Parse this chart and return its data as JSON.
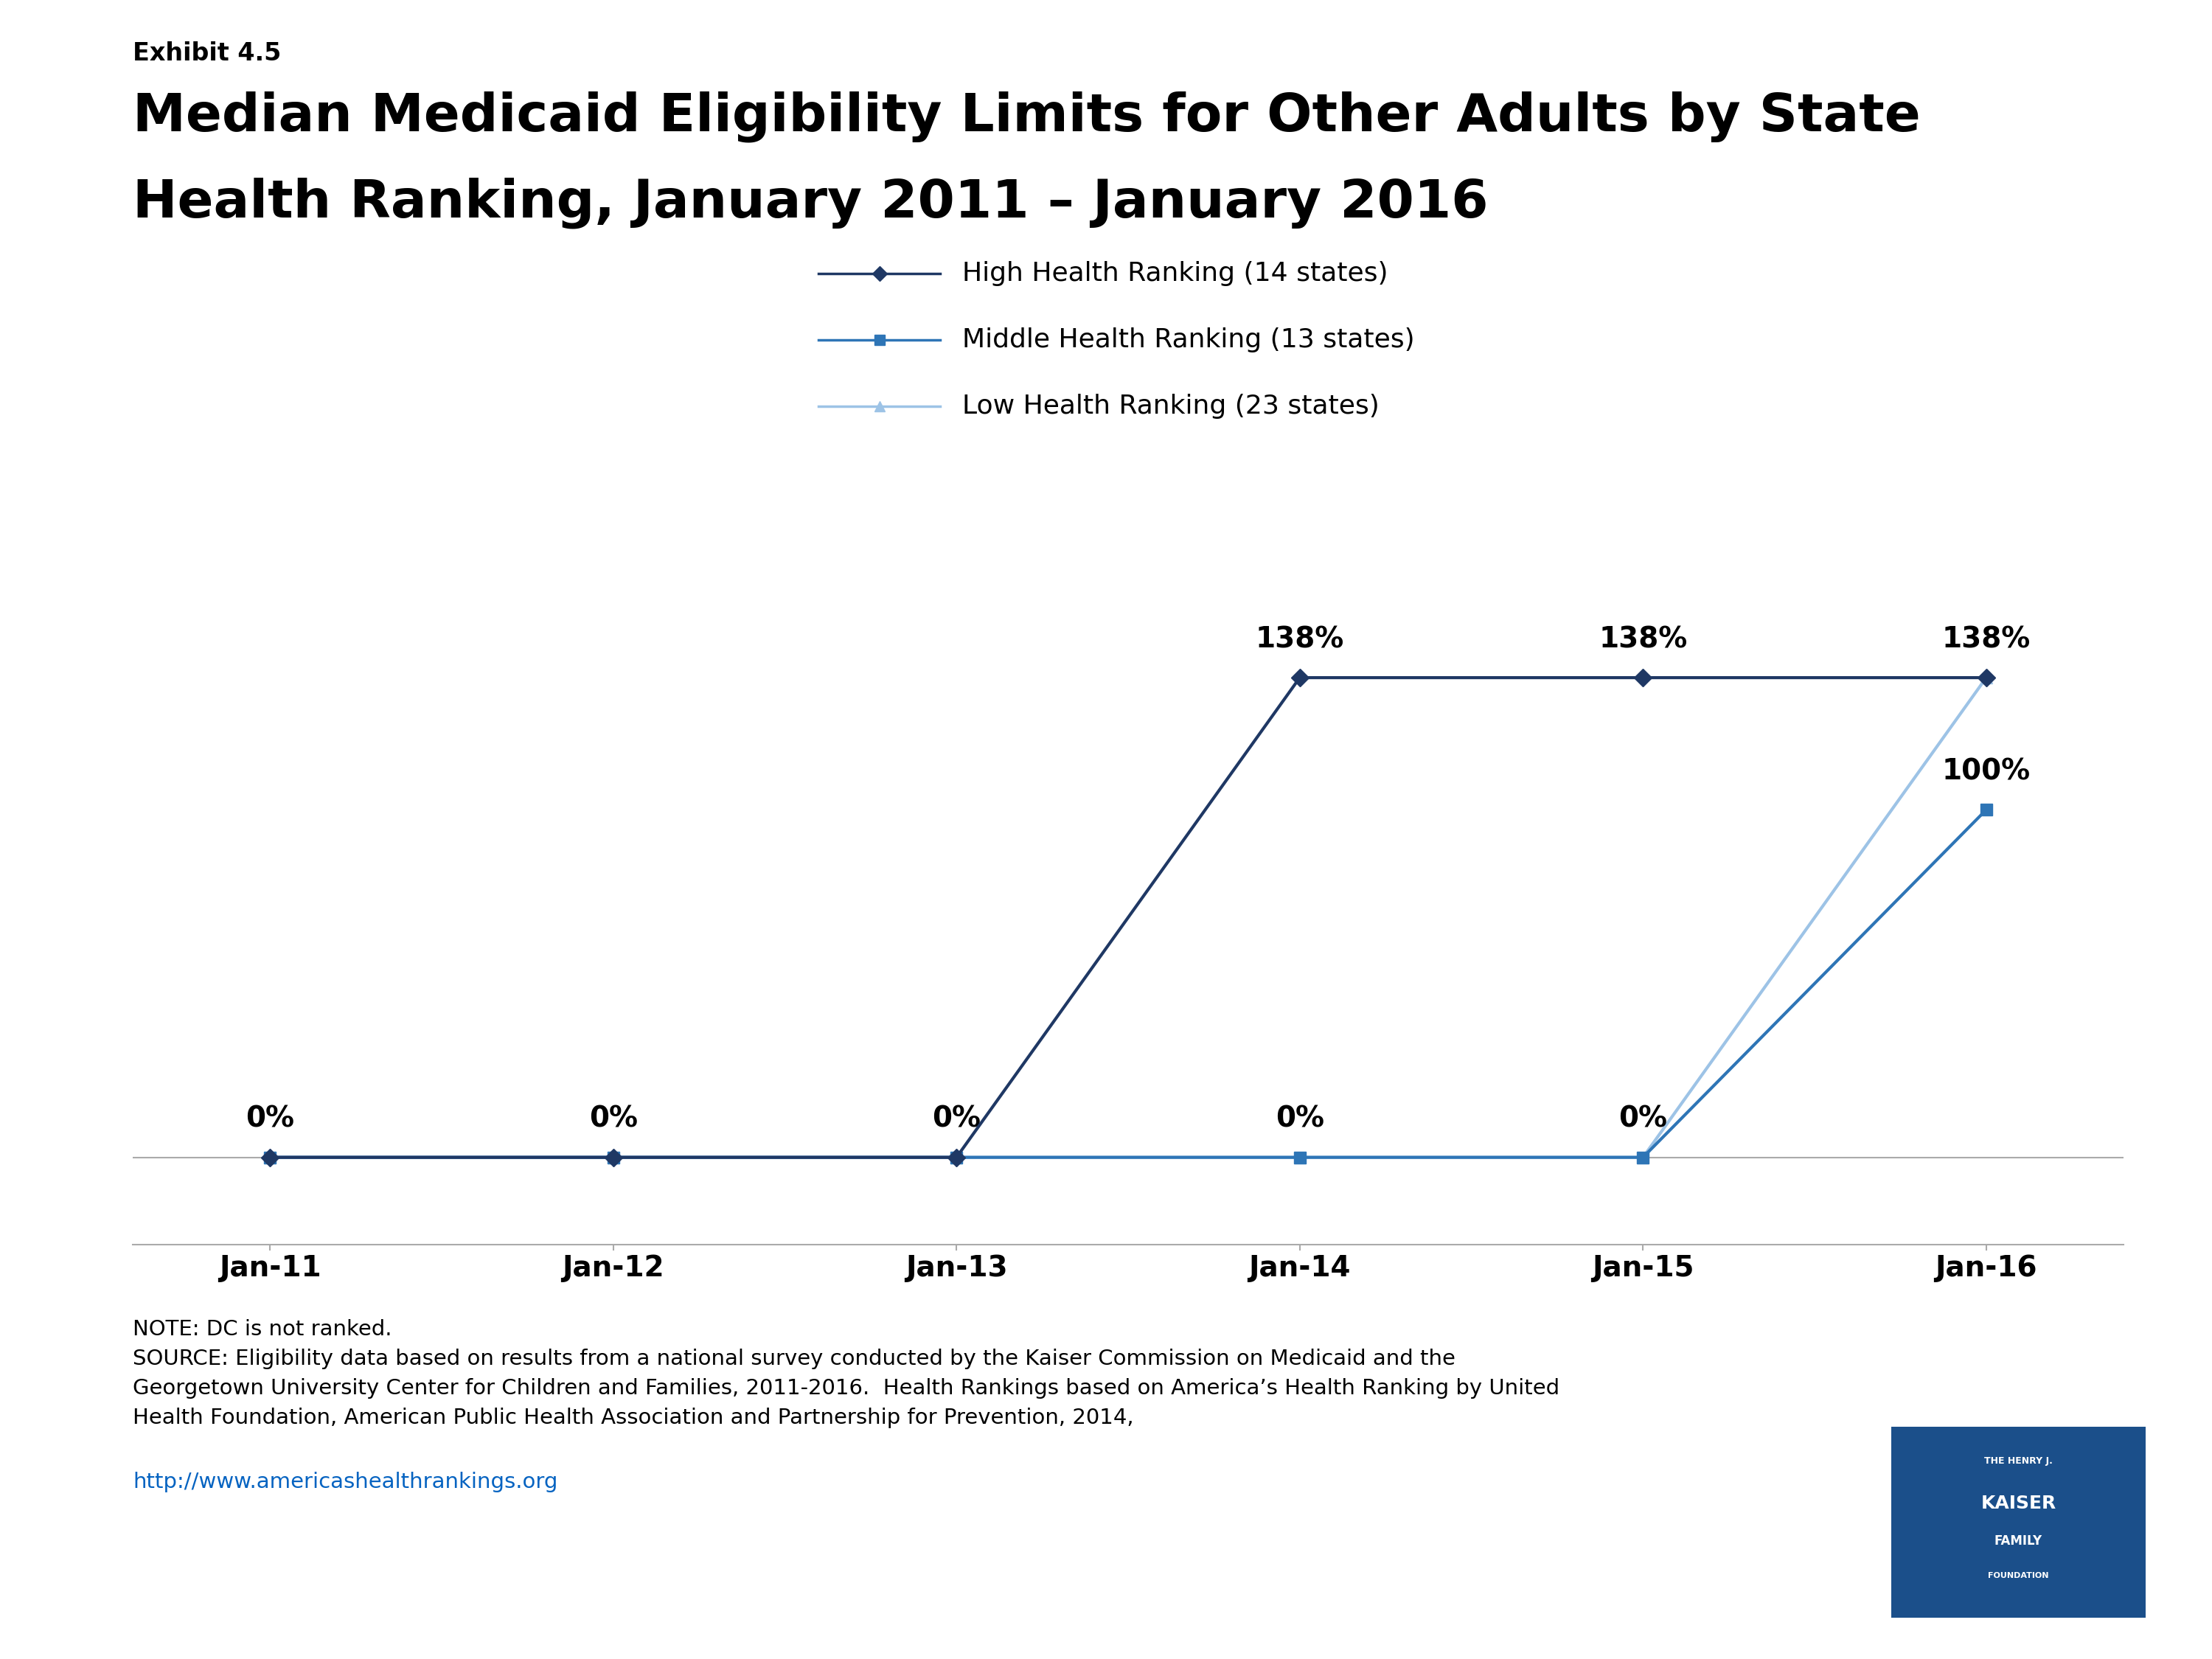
{
  "exhibit_label": "Exhibit 4.5",
  "title_line1": "Median Medicaid Eligibility Limits for Other Adults by State",
  "title_line2": "Health Ranking, January 2011 – January 2016",
  "x_labels": [
    "Jan-11",
    "Jan-12",
    "Jan-13",
    "Jan-14",
    "Jan-15",
    "Jan-16"
  ],
  "x_values": [
    0,
    1,
    2,
    3,
    4,
    5
  ],
  "series": [
    {
      "label": "High Health Ranking (14 states)",
      "color": "#1F3864",
      "values": [
        0,
        0,
        0,
        138,
        138,
        138
      ],
      "marker": "D",
      "marker_size": 12,
      "zorder": 5
    },
    {
      "label": "Middle Health Ranking (13 states)",
      "color": "#2E75B6",
      "values": [
        0,
        0,
        0,
        0,
        0,
        100
      ],
      "marker": "s",
      "marker_size": 12,
      "zorder": 4
    },
    {
      "label": "Low Health Ranking (23 states)",
      "color": "#9DC3E6",
      "values": [
        0,
        0,
        0,
        0,
        0,
        138
      ],
      "marker": "^",
      "marker_size": 12,
      "zorder": 3
    }
  ],
  "high_labels": [
    "0%",
    "0%",
    "0%",
    "138%",
    "138%",
    "138%"
  ],
  "mid_labels": [
    null,
    null,
    null,
    "0%",
    "0%",
    "100%"
  ],
  "low_labels": [
    null,
    null,
    null,
    null,
    null,
    null
  ],
  "ylim": [
    -25,
    185
  ],
  "note_text": "NOTE: DC is not ranked.\nSOURCE: Eligibility data based on results from a national survey conducted by the Kaiser Commission on Medicaid and the\nGeorgetown University Center for Children and Families, 2011-2016.  Health Rankings based on America’s Health Ranking by United\nHealth Foundation, American Public Health Association and Partnership for Prevention, 2014,",
  "url_text": "http://www.americashealthrankings.org",
  "background_color": "#FFFFFF",
  "line_width": 3.0,
  "title_fontsize": 52,
  "exhibit_fontsize": 24,
  "tick_fontsize": 28,
  "label_fontsize": 28,
  "note_fontsize": 21,
  "legend_fontsize": 26
}
